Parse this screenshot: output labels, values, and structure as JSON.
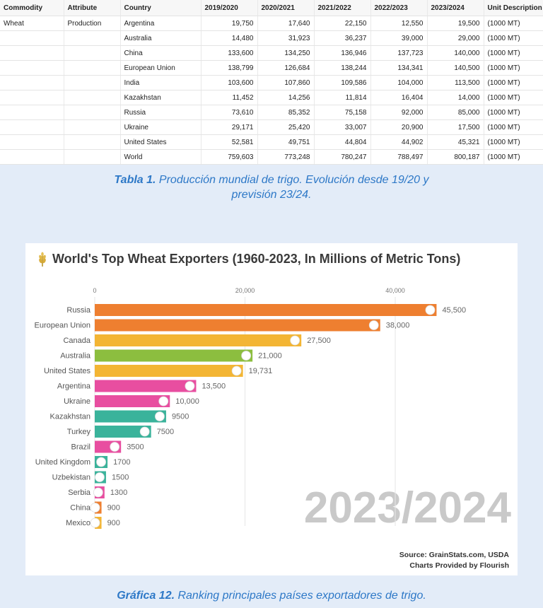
{
  "table": {
    "headers": [
      "Commodity",
      "Attribute",
      "Country",
      "2019/2020",
      "2020/2021",
      "2021/2022",
      "2022/2023",
      "2023/2024",
      "Unit Description"
    ],
    "rows": [
      [
        "Wheat",
        "Production",
        "Argentina",
        "19,750",
        "17,640",
        "22,150",
        "12,550",
        "19,500",
        "(1000 MT)"
      ],
      [
        "",
        "",
        "Australia",
        "14,480",
        "31,923",
        "36,237",
        "39,000",
        "29,000",
        "(1000 MT)"
      ],
      [
        "",
        "",
        "China",
        "133,600",
        "134,250",
        "136,946",
        "137,723",
        "140,000",
        "(1000 MT)"
      ],
      [
        "",
        "",
        "European Union",
        "138,799",
        "126,684",
        "138,244",
        "134,341",
        "140,500",
        "(1000 MT)"
      ],
      [
        "",
        "",
        "India",
        "103,600",
        "107,860",
        "109,586",
        "104,000",
        "113,500",
        "(1000 MT)"
      ],
      [
        "",
        "",
        "Kazakhstan",
        "11,452",
        "14,256",
        "11,814",
        "16,404",
        "14,000",
        "(1000 MT)"
      ],
      [
        "",
        "",
        "Russia",
        "73,610",
        "85,352",
        "75,158",
        "92,000",
        "85,000",
        "(1000 MT)"
      ],
      [
        "",
        "",
        "Ukraine",
        "29,171",
        "25,420",
        "33,007",
        "20,900",
        "17,500",
        "(1000 MT)"
      ],
      [
        "",
        "",
        "United States",
        "52,581",
        "49,751",
        "44,804",
        "44,902",
        "45,321",
        "(1000 MT)"
      ],
      [
        "",
        "",
        "World",
        "759,603",
        "773,248",
        "780,247",
        "788,497",
        "800,187",
        "(1000 MT)"
      ]
    ]
  },
  "caption1": {
    "label": "Tabla 1.",
    "text_line1": " Producción mundial de trigo. Evolución desde 19/20 y",
    "text_line2": "previsión 23/24."
  },
  "caption2": {
    "label": "Gráfica 12.",
    "text": " Ranking principales países exportadores de trigo."
  },
  "chart_data": {
    "type": "bar",
    "orientation": "horizontal",
    "title": "World's Top Wheat Exporters (1960-2023, In Millions of Metric Tons)",
    "period_watermark": "2023/2024",
    "xlim": [
      0,
      48000
    ],
    "x_ticks": [
      0,
      20000,
      40000
    ],
    "x_tick_labels": [
      "0",
      "20,000",
      "40,000"
    ],
    "grid": true,
    "categories": [
      "Russia",
      "European Union",
      "Canada",
      "Australia",
      "United States",
      "Argentina",
      "Ukraine",
      "Kazakhstan",
      "Turkey",
      "Brazil",
      "United Kingdom",
      "Uzbekistan",
      "Serbia",
      "China",
      "Mexico"
    ],
    "values": [
      45500,
      38000,
      27500,
      21000,
      19731,
      13500,
      10000,
      9500,
      7500,
      3500,
      1700,
      1500,
      1300,
      900,
      900
    ],
    "value_labels": [
      "45,500",
      "38,000",
      "27,500",
      "21,000",
      "19,731",
      "13,500",
      "10,000",
      "9500",
      "7500",
      "3500",
      "1700",
      "1500",
      "1300",
      "900",
      "900"
    ],
    "colors": [
      "#ee7f30",
      "#ee7f30",
      "#f3b534",
      "#8cbe3f",
      "#f3b534",
      "#e84ea0",
      "#e84ea0",
      "#3ab39b",
      "#3ab39b",
      "#e84ea0",
      "#3ab39b",
      "#3ab39b",
      "#e84ea0",
      "#ee7f30",
      "#f3b534"
    ],
    "source_line1": "Source: GrainStats.com, USDA",
    "source_line2": "Charts Provided by Flourish"
  }
}
